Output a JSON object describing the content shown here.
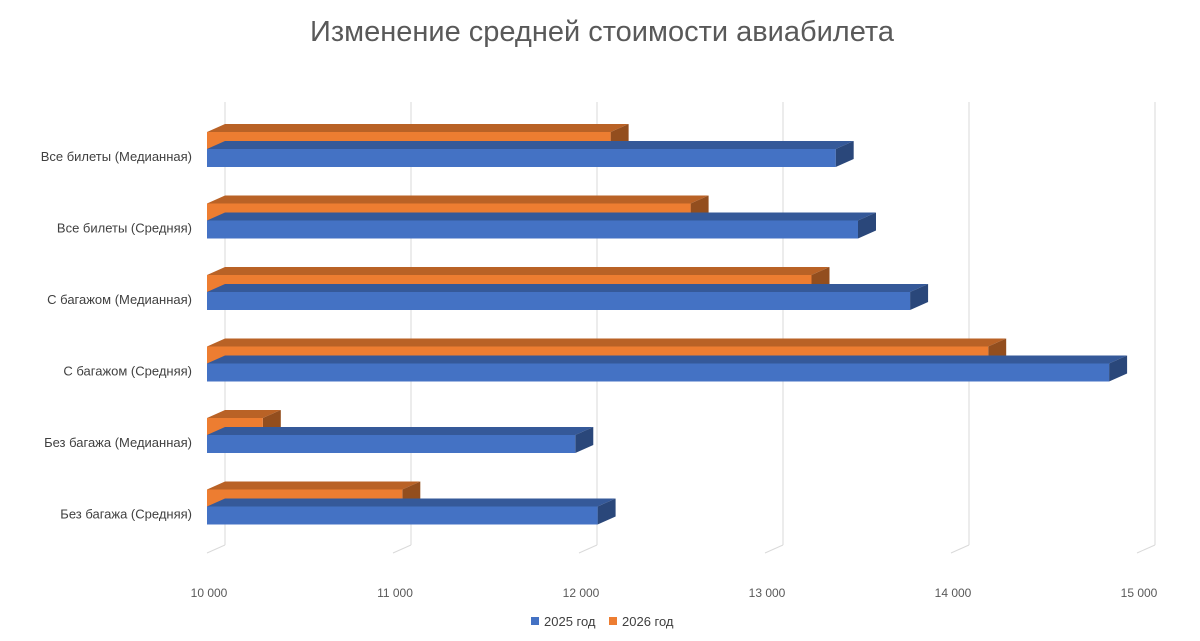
{
  "chart_data": {
    "type": "bar",
    "orientation": "horizontal",
    "style": "3d",
    "title": "Изменение средней стоимости авиабилета",
    "categories": [
      "Все билеты (Медианная)",
      "Все билеты (Средняя)",
      "С багажом (Медианная)",
      "С багажом (Средняя)",
      "Без багажа (Медианная)",
      "Без багажа (Средняя)"
    ],
    "series": [
      {
        "name": "2025 год",
        "color": "#4472c4",
        "values": [
          13380,
          13500,
          13780,
          14850,
          11980,
          12100
        ]
      },
      {
        "name": "2026 год",
        "color": "#ed7d31",
        "values": [
          12170,
          12600,
          13250,
          14200,
          10300,
          11050
        ]
      }
    ],
    "xlim": [
      10000,
      15000
    ],
    "xticks": [
      10000,
      11000,
      12000,
      13000,
      14000,
      15000
    ],
    "xtick_labels": [
      "10 000",
      "11 000",
      "12 000",
      "13 000",
      "14 000",
      "15 000"
    ],
    "xlabel": "",
    "ylabel": "",
    "grid": true,
    "legend_position": "bottom"
  }
}
